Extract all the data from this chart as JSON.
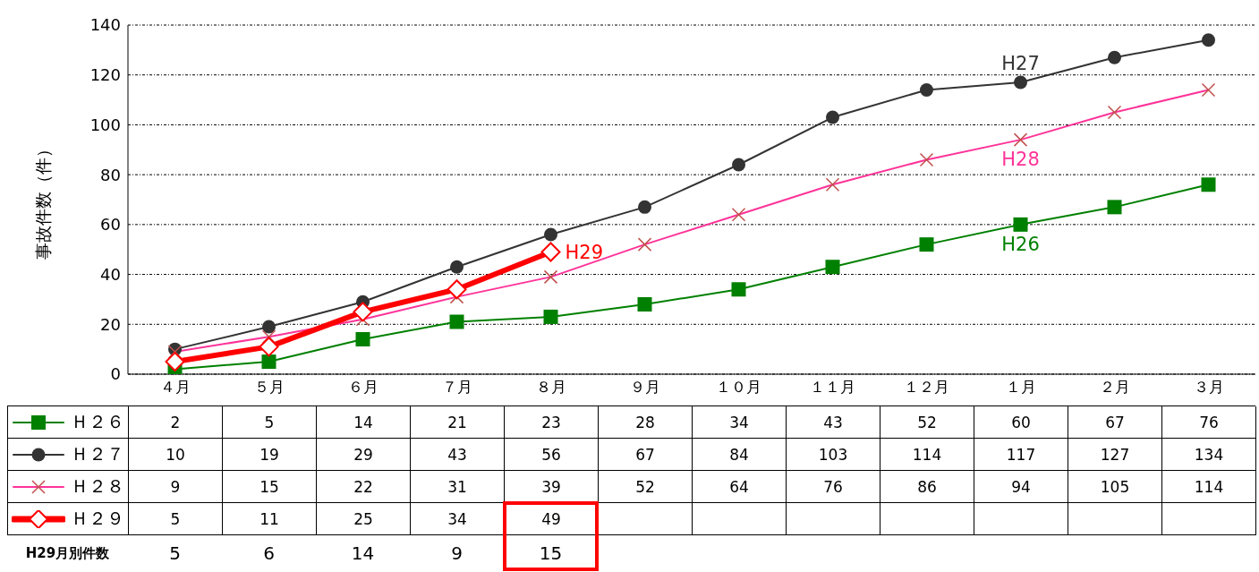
{
  "chart_data": {
    "type": "line",
    "ylabel": "事故件数（件）",
    "categories": [
      "４月",
      "５月",
      "６月",
      "７月",
      "８月",
      "９月",
      "１０月",
      "１１月",
      "１２月",
      "１月",
      "２月",
      "３月"
    ],
    "series": [
      {
        "name": "Ｈ２６",
        "color": "#008000",
        "marker": "square",
        "values": [
          2,
          5,
          14,
          21,
          23,
          28,
          34,
          43,
          52,
          60,
          67,
          76
        ]
      },
      {
        "name": "Ｈ２７",
        "color": "#333333",
        "marker": "circle",
        "values": [
          10,
          19,
          29,
          43,
          56,
          67,
          84,
          103,
          114,
          117,
          127,
          134
        ]
      },
      {
        "name": "Ｈ２８",
        "color": "#ff3399",
        "marker": "cross",
        "values": [
          9,
          15,
          22,
          31,
          39,
          52,
          64,
          76,
          86,
          94,
          105,
          114
        ]
      },
      {
        "name": "Ｈ２９",
        "color": "#ff0000",
        "marker": "diamond",
        "values": [
          5,
          11,
          25,
          34,
          49,
          null,
          null,
          null,
          null,
          null,
          null,
          null
        ]
      }
    ],
    "ylim": [
      0,
      140
    ],
    "yticks": [
      0,
      20,
      40,
      60,
      80,
      100,
      120,
      140
    ],
    "grid": "y",
    "legend": "bottom left",
    "data_labels": true,
    "annotations": [
      "H26",
      "H27",
      "H28",
      "H29",
      "H29月別件数",
      "5",
      "6",
      "14",
      "9",
      "15"
    ]
  }
}
